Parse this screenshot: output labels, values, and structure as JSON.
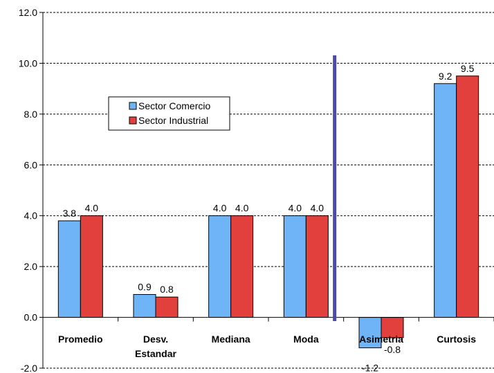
{
  "chart_data": {
    "type": "bar",
    "title": "",
    "xlabel": "",
    "ylabel": "",
    "ylim": [
      -2.0,
      12.0
    ],
    "yticks": [
      "-2.0",
      "0.0",
      "2.0",
      "4.0",
      "6.0",
      "8.0",
      "10.0",
      "12.0"
    ],
    "ytick_values": [
      -2,
      0,
      2,
      4,
      6,
      8,
      10,
      12
    ],
    "grid": true,
    "legend_position": "upper-left",
    "categories": [
      {
        "lines": [
          "Promedio"
        ]
      },
      {
        "lines": [
          "Desv.",
          "Estandar"
        ]
      },
      {
        "lines": [
          "Mediana"
        ]
      },
      {
        "lines": [
          "Moda"
        ]
      },
      {
        "lines": [
          "Asimetria"
        ]
      },
      {
        "lines": [
          "Curtosis"
        ]
      }
    ],
    "series": [
      {
        "name": "Sector Comercio",
        "color": "#6fb4f6",
        "values": [
          3.8,
          0.9,
          4.0,
          4.0,
          -1.2,
          9.2
        ],
        "labels": [
          "3.8",
          "0.9",
          "4.0",
          "4.0",
          "-1.2",
          "9.2"
        ]
      },
      {
        "name": "Sector Industrial",
        "color": "#e2403c",
        "values": [
          4.0,
          0.8,
          4.0,
          4.0,
          -0.8,
          9.5
        ],
        "labels": [
          "4.0",
          "0.8",
          "4.0",
          "4.0",
          "-0.8",
          "9.5"
        ]
      }
    ],
    "separator": {
      "after_category": 3,
      "color": "#4a4aa8"
    }
  }
}
